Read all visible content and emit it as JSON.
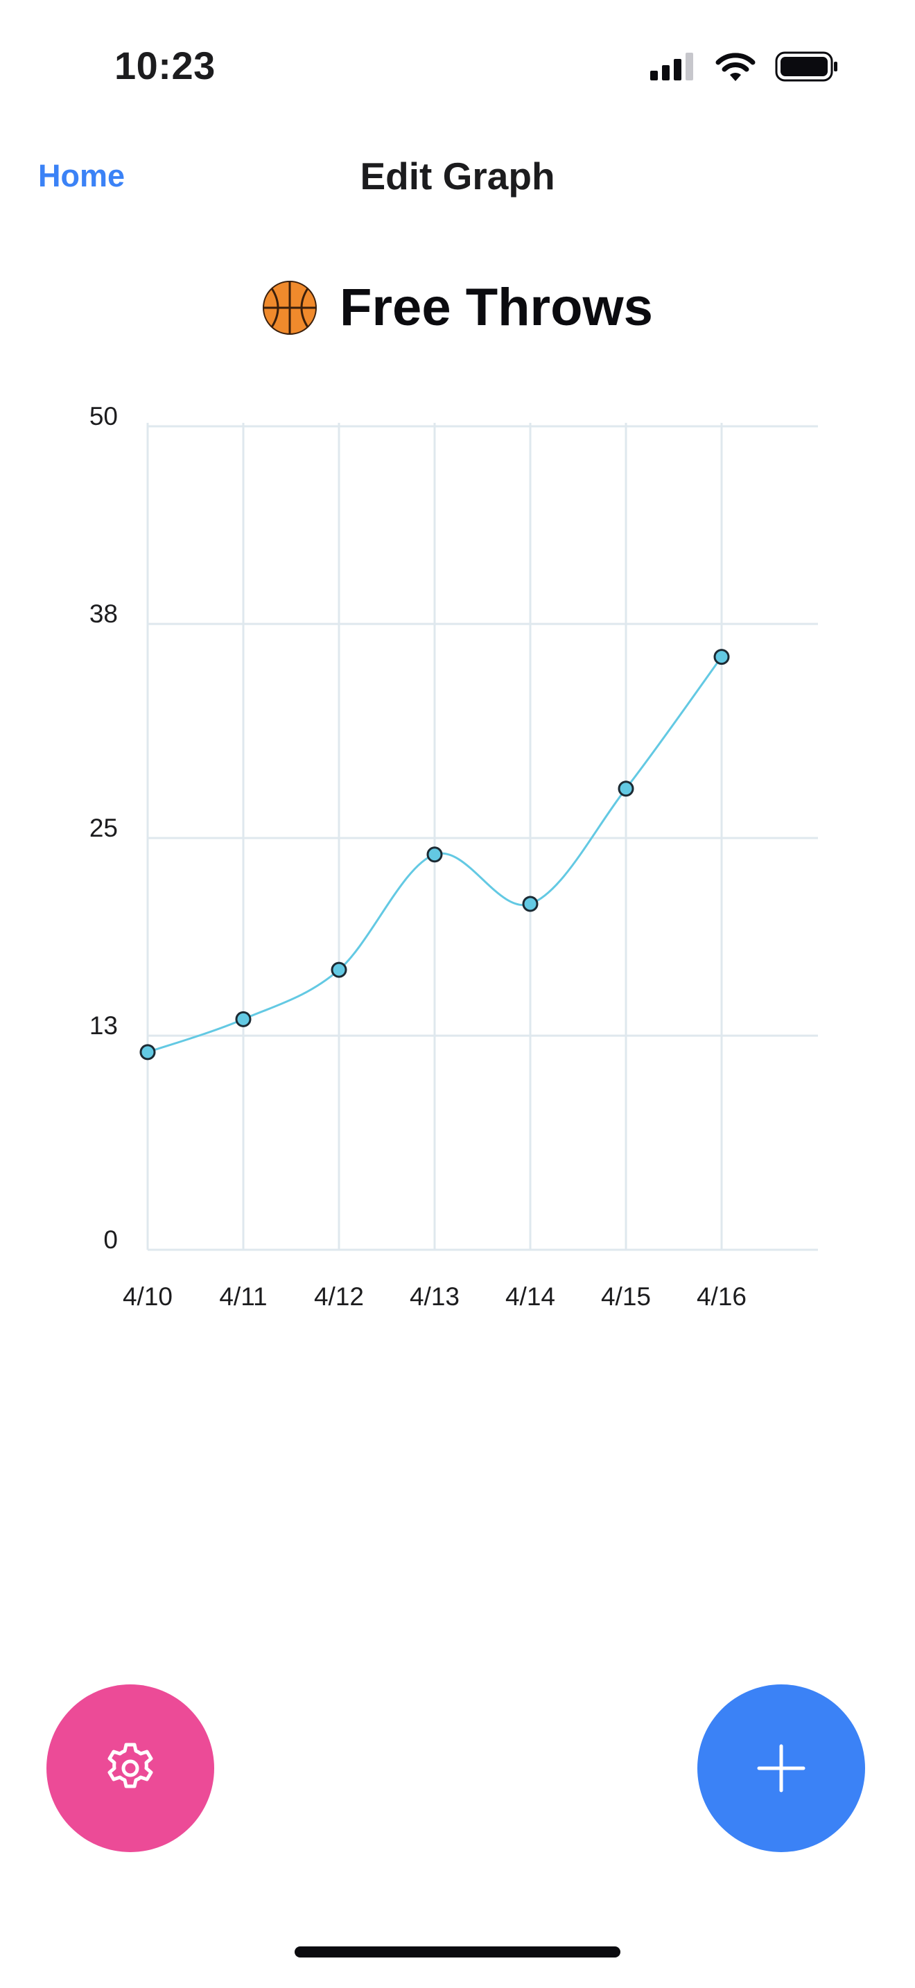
{
  "status_bar": {
    "time": "10:23"
  },
  "nav": {
    "back_label": "Home",
    "title": "Edit Graph"
  },
  "graph": {
    "emoji_icon": "basketball-icon",
    "title": "Free Throws"
  },
  "chart_data": {
    "type": "line",
    "title": "Free Throws",
    "xlabel": "",
    "ylabel": "",
    "categories": [
      "4/10",
      "4/11",
      "4/12",
      "4/13",
      "4/14",
      "4/15",
      "4/16"
    ],
    "series": [
      {
        "values": [
          12,
          14,
          17,
          24,
          21,
          28,
          36
        ]
      }
    ],
    "y_ticks": [
      "0",
      "13",
      "25",
      "38",
      "50"
    ],
    "ylim": [
      0,
      50
    ],
    "grid": true,
    "smooth": true,
    "line_color": "#63c9e3",
    "point_color": "#63c9e3",
    "grid_color": "#dfe8ee"
  },
  "fabs": {
    "settings_icon": "gear-icon",
    "add_icon": "plus-icon",
    "settings_color": "#ec4b97",
    "add_color": "#3b82f6"
  }
}
